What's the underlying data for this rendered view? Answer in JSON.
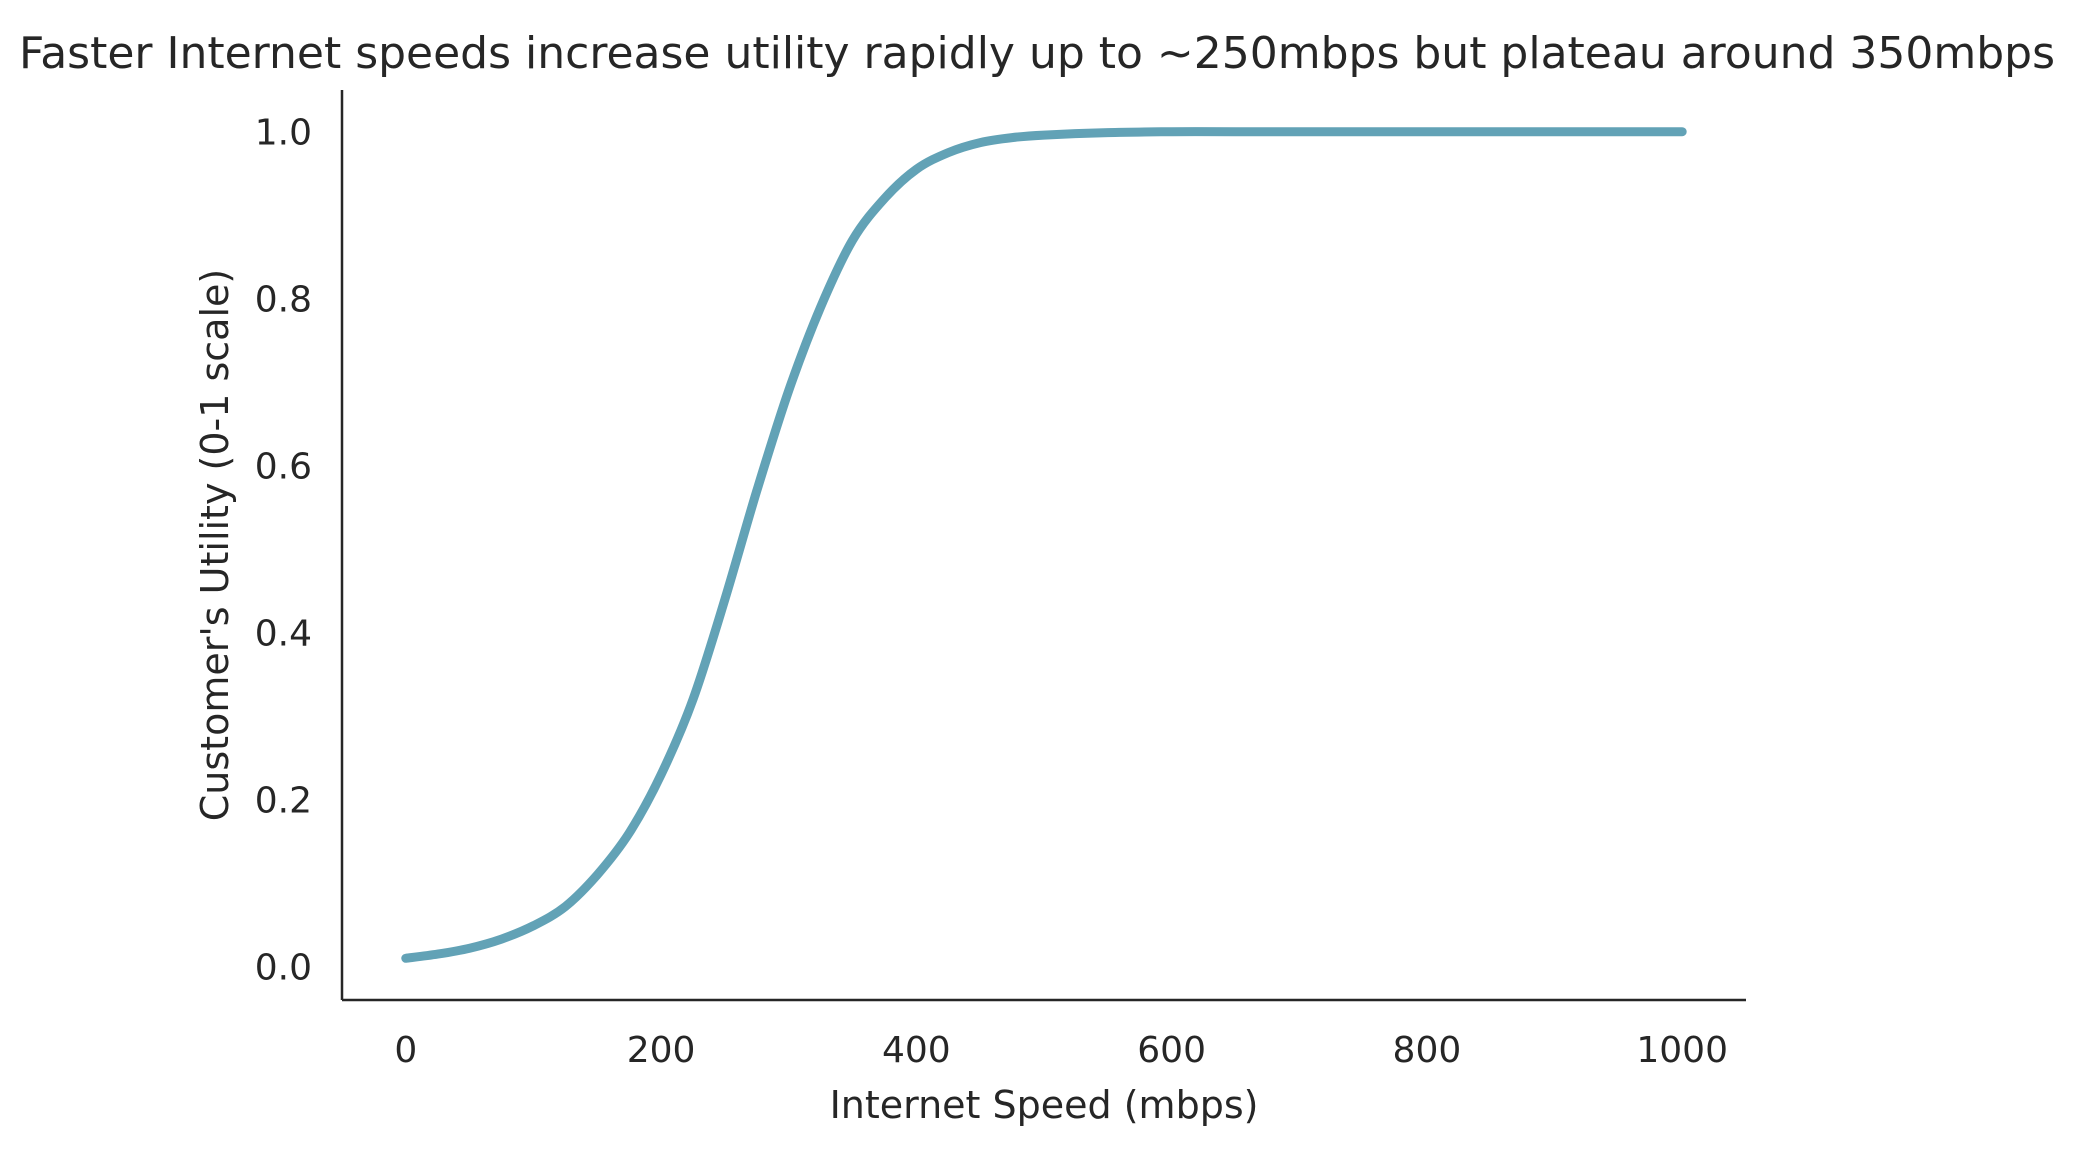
{
  "chart_data": {
    "type": "line",
    "title": "Faster Internet speeds increase utility rapidly up to ~250mbps but plateau around 350mbps",
    "xlabel": "Internet Speed (mbps)",
    "ylabel": "Customer's Utility (0-1 scale)",
    "xlim": [
      -50,
      1050
    ],
    "ylim": [
      -0.04,
      1.05
    ],
    "xticks": [
      0,
      200,
      400,
      600,
      800,
      1000
    ],
    "xtick_labels": [
      "0",
      "200",
      "400",
      "600",
      "800",
      "1000"
    ],
    "yticks": [
      0.0,
      0.2,
      0.4,
      0.6,
      0.8,
      1.0
    ],
    "ytick_labels": [
      "0.0",
      "0.2",
      "0.4",
      "0.6",
      "0.8",
      "1.0"
    ],
    "grid": false,
    "series": [
      {
        "color": "#62a2b6",
        "x": [
          0,
          25,
          50,
          75,
          100,
          125,
          150,
          175,
          200,
          225,
          250,
          275,
          300,
          325,
          350,
          375,
          400,
          425,
          450,
          475,
          500,
          550,
          600,
          650,
          700,
          800,
          900,
          1000
        ],
        "y": [
          0.01,
          0.015,
          0.022,
          0.033,
          0.049,
          0.072,
          0.11,
          0.16,
          0.23,
          0.32,
          0.44,
          0.57,
          0.69,
          0.79,
          0.87,
          0.92,
          0.955,
          0.975,
          0.987,
          0.993,
          0.996,
          0.999,
          1.0,
          1.0,
          1.0,
          1.0,
          1.0,
          1.0
        ]
      }
    ]
  }
}
